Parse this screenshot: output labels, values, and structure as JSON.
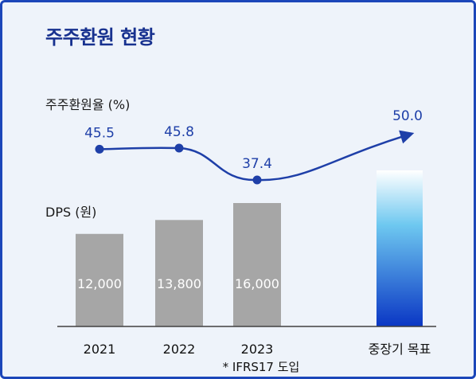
{
  "title": "주주환원 현황",
  "colors": {
    "frame_bg": "#eef3fa",
    "border": "#1b46b9",
    "title": "#17318f",
    "line": "#1e3fa8",
    "bar": "#a6a6a6",
    "target_top": "#ffffff",
    "target_mid": "#6ec8f0",
    "target_bottom": "#0a36c4",
    "axis": "#404040"
  },
  "chart_data": {
    "type": "bar",
    "categories": [
      "2021",
      "2022",
      "2023",
      "중장기 목표"
    ],
    "category_note": "* IFRS17 도입",
    "series": [
      {
        "name": "DPS (원)",
        "type": "bar",
        "values": [
          12000,
          13800,
          16000,
          null
        ],
        "value_labels": [
          "12,000",
          "13,800",
          "16,000",
          null
        ]
      },
      {
        "name": "주주환원율 (%)",
        "type": "line",
        "values": [
          45.5,
          45.8,
          37.4,
          50.0
        ],
        "value_labels": [
          "45.5",
          "45.8",
          "37.4",
          "50.0"
        ]
      }
    ],
    "ylabel_bar": "DPS (원)",
    "ylabel_line": "주주환원율 (%)",
    "target_bar": {
      "category": "중장기 목표",
      "style": "gradient"
    },
    "grid": false,
    "legend": "none"
  }
}
